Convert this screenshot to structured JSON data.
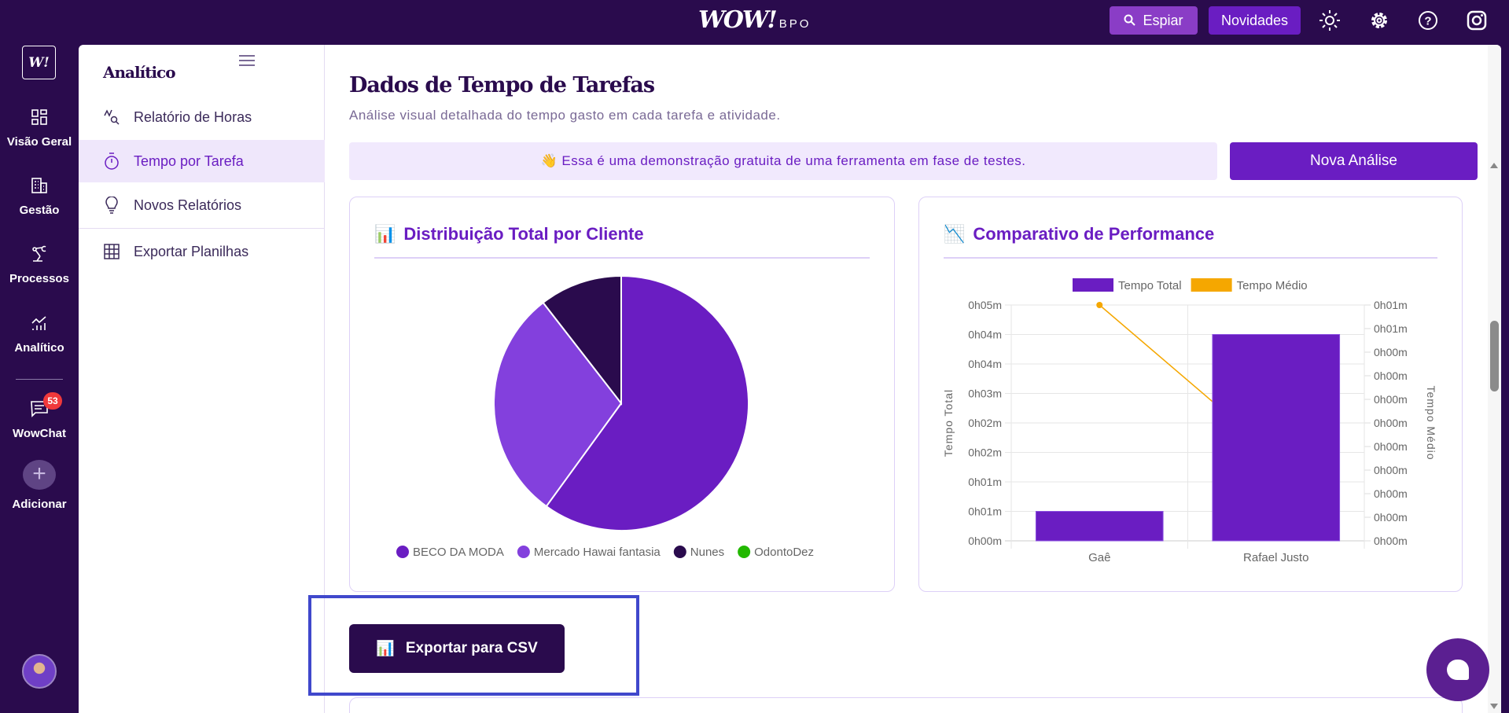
{
  "topbar": {
    "logo": "WOW!",
    "logo_sub": "BPO",
    "espiar": "Espiar",
    "novidades": "Novidades",
    "icons": [
      "sun-icon",
      "gear-icon",
      "help-icon",
      "instagram-icon"
    ]
  },
  "rail": {
    "logo": "W!",
    "items": [
      {
        "label": "Visão Geral"
      },
      {
        "label": "Gestão"
      },
      {
        "label": "Processos"
      },
      {
        "label": "Analítico"
      },
      {
        "label": "WowChat",
        "badge": "53"
      },
      {
        "label": "Adicionar"
      }
    ]
  },
  "subnav": {
    "title": "Analítico",
    "items": [
      {
        "label": "Relatório de Horas"
      },
      {
        "label": "Tempo por Tarefa",
        "active": true
      },
      {
        "label": "Novos Relatórios"
      },
      {
        "label": "Exportar Planilhas"
      }
    ]
  },
  "main": {
    "title": "Dados de Tempo de Tarefas",
    "subtitle": "Análise visual detalhada do tempo gasto em cada tarefa e atividade.",
    "banner": "👋 Essa é uma demonstração gratuita de uma ferramenta em fase de testes.",
    "new_button": "Nova Análise",
    "export_button": "Exportar para CSV",
    "export_icon": "📊"
  },
  "colors": {
    "primary": "#6a1dc2",
    "dark": "#2a0b4d",
    "light": "#8340dd",
    "green": "#22b800",
    "orange": "#f5a700"
  },
  "chart_data": [
    {
      "type": "pie",
      "title": "Distribuição Total por Cliente",
      "title_icon": "📊",
      "legend": "bottom",
      "categories": [
        "BECO DA MODA",
        "Mercado Hawai fantasia",
        "Nunes",
        "OdontoDez"
      ],
      "values": [
        60,
        29.5,
        10.5,
        0
      ],
      "colors": [
        "#6a1dc2",
        "#8340dd",
        "#2a0b4d",
        "#22b800"
      ]
    },
    {
      "type": "bar",
      "title": "Comparativo de Performance",
      "title_icon": "📉",
      "legend": "top",
      "categories": [
        "Gaê",
        "Rafael Justo"
      ],
      "series": [
        {
          "name": "Tempo Total",
          "type": "bar",
          "axis": "left",
          "unit": "seconds",
          "values": [
            35,
            245
          ],
          "color": "#6a1dc2"
        },
        {
          "name": "Tempo Médio",
          "type": "line",
          "axis": "right",
          "unit": "seconds",
          "values": [
            50,
            18
          ],
          "color": "#f5a700"
        }
      ],
      "ylabel": "Tempo Total",
      "y2label": "Tempo Médio",
      "ylim": [
        0,
        280
      ],
      "y2lim": [
        0,
        50
      ],
      "yticks": [
        "0h00m",
        "0h01m",
        "0h01m",
        "0h02m",
        "0h02m",
        "0h03m",
        "0h04m",
        "0h04m",
        "0h05m"
      ],
      "y2ticks": [
        "0h00m",
        "0h00m",
        "0h00m",
        "0h00m",
        "0h00m",
        "0h00m",
        "0h00m",
        "0h00m",
        "0h00m",
        "0h01m",
        "0h01m"
      ],
      "grid": true
    }
  ]
}
